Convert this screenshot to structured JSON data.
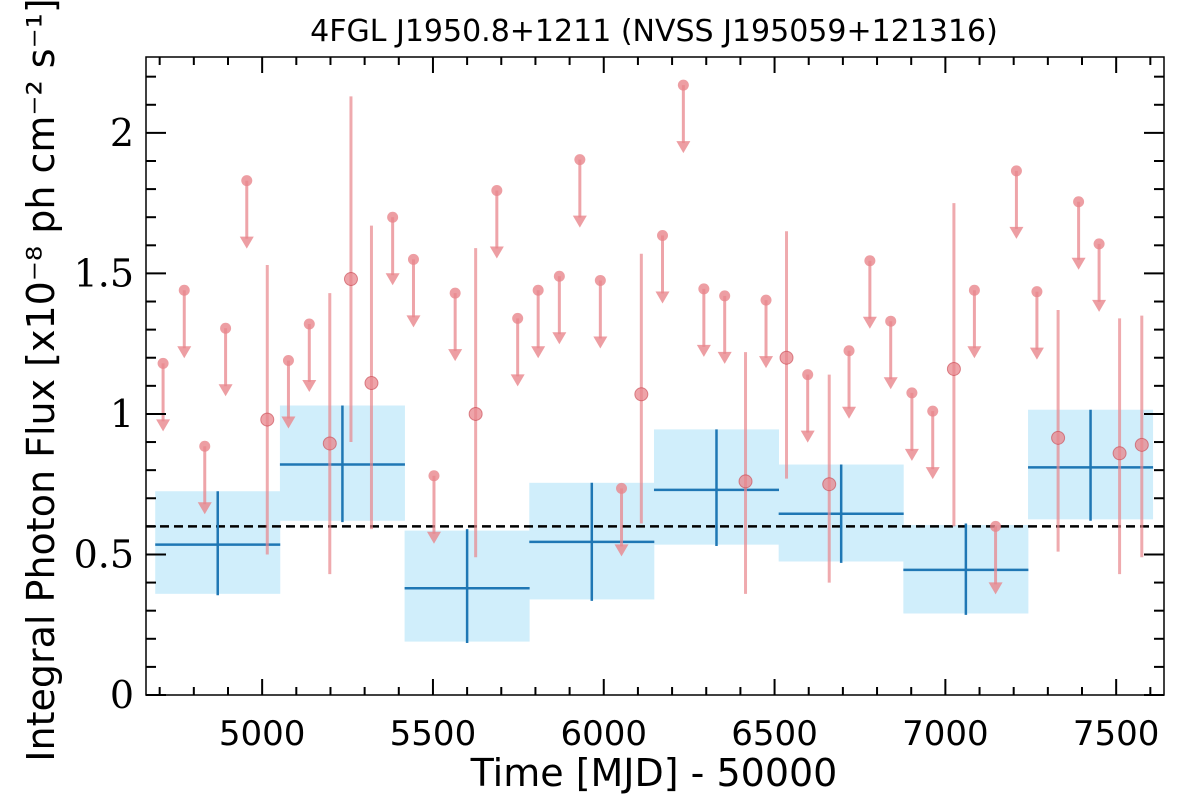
{
  "chart_data": {
    "type": "scatter",
    "title": "4FGL J1950.8+1211 (NVSS J195059+121316)",
    "xlabel": "Time [MJD] - 50000",
    "ylabel": "Integral Photon Flux [x10⁻⁸ ph cm⁻² s⁻¹]",
    "xlim": [
      4660,
      7640
    ],
    "ylim": [
      0,
      2.27
    ],
    "xticks": [
      5000,
      5500,
      6000,
      6500,
      7000,
      7500
    ],
    "yticks": [
      0,
      0.5,
      1,
      1.5,
      2
    ],
    "ytick_labels": [
      "0",
      "0.5",
      "1",
      "1.5",
      "2"
    ],
    "grid": false,
    "reference_line": {
      "y": 0.6,
      "style": "dashed",
      "color": "#000000"
    },
    "colors": {
      "binned": "#1f77b4",
      "binned_fill": "#d0eefb",
      "short": "#e8868c"
    },
    "series": [
      {
        "kind": "binned",
        "bins": [
          {
            "x": 4870,
            "half_width": 183,
            "y": 0.535,
            "yerr": [
              0.355,
              0.725
            ],
            "band": [
              0.36,
              0.725
            ]
          },
          {
            "x": 5235,
            "half_width": 183,
            "y": 0.82,
            "yerr": [
              0.615,
              1.03
            ],
            "band": [
              0.62,
              1.03
            ]
          },
          {
            "x": 5600,
            "half_width": 183,
            "y": 0.38,
            "yerr": [
              0.185,
              0.59
            ],
            "band": [
              0.19,
              0.585
            ]
          },
          {
            "x": 5965,
            "half_width": 183,
            "y": 0.545,
            "yerr": [
              0.335,
              0.755
            ],
            "band": [
              0.34,
              0.755
            ]
          },
          {
            "x": 6330,
            "half_width": 183,
            "y": 0.73,
            "yerr": [
              0.53,
              0.945
            ],
            "band": [
              0.535,
              0.945
            ]
          },
          {
            "x": 6695,
            "half_width": 183,
            "y": 0.645,
            "yerr": [
              0.47,
              0.82
            ],
            "band": [
              0.475,
              0.82
            ]
          },
          {
            "x": 7060,
            "half_width": 183,
            "y": 0.445,
            "yerr": [
              0.285,
              0.61
            ],
            "band": [
              0.29,
              0.605
            ]
          },
          {
            "x": 7425,
            "half_width": 183,
            "y": 0.81,
            "yerr": [
              0.62,
              1.015
            ],
            "band": [
              0.625,
              1.015
            ]
          }
        ]
      },
      {
        "kind": "detections",
        "points": [
          {
            "x": 5015,
            "y": 0.98,
            "yerr": [
              0.5,
              1.53
            ]
          },
          {
            "x": 5198,
            "y": 0.895,
            "yerr": [
              0.43,
              1.43
            ]
          },
          {
            "x": 5260,
            "y": 1.48,
            "yerr": [
              0.9,
              2.13
            ]
          },
          {
            "x": 5320,
            "y": 1.11,
            "yerr": [
              0.59,
              1.67
            ]
          },
          {
            "x": 5625,
            "y": 1.0,
            "yerr": [
              0.49,
              1.59
            ]
          },
          {
            "x": 6110,
            "y": 1.07,
            "yerr": [
              0.61,
              1.57
            ]
          },
          {
            "x": 6415,
            "y": 0.76,
            "yerr": [
              0.36,
              1.22
            ]
          },
          {
            "x": 6535,
            "y": 1.2,
            "yerr": [
              0.77,
              1.65
            ]
          },
          {
            "x": 6660,
            "y": 0.75,
            "yerr": [
              0.4,
              1.14
            ]
          },
          {
            "x": 7025,
            "y": 1.16,
            "yerr": [
              0.6,
              1.75
            ]
          },
          {
            "x": 7330,
            "y": 0.915,
            "yerr": [
              0.51,
              1.37
            ]
          },
          {
            "x": 7510,
            "y": 0.86,
            "yerr": [
              0.43,
              1.34
            ]
          },
          {
            "x": 7575,
            "y": 0.89,
            "yerr": [
              0.49,
              1.35
            ]
          }
        ]
      },
      {
        "kind": "upper_limits",
        "points": [
          {
            "x": 4710,
            "y": 1.18
          },
          {
            "x": 4772,
            "y": 1.44
          },
          {
            "x": 4832,
            "y": 0.885
          },
          {
            "x": 4893,
            "y": 1.305
          },
          {
            "x": 4955,
            "y": 1.83
          },
          {
            "x": 5077,
            "y": 1.19
          },
          {
            "x": 5138,
            "y": 1.32
          },
          {
            "x": 5382,
            "y": 1.7
          },
          {
            "x": 5443,
            "y": 1.55
          },
          {
            "x": 5503,
            "y": 0.78
          },
          {
            "x": 5565,
            "y": 1.43
          },
          {
            "x": 5687,
            "y": 1.795
          },
          {
            "x": 5748,
            "y": 1.34
          },
          {
            "x": 5808,
            "y": 1.44
          },
          {
            "x": 5870,
            "y": 1.49
          },
          {
            "x": 5930,
            "y": 1.905
          },
          {
            "x": 5990,
            "y": 1.475
          },
          {
            "x": 6052,
            "y": 0.735
          },
          {
            "x": 6172,
            "y": 1.635
          },
          {
            "x": 6233,
            "y": 2.17
          },
          {
            "x": 6293,
            "y": 1.445
          },
          {
            "x": 6354,
            "y": 1.42
          },
          {
            "x": 6475,
            "y": 1.405
          },
          {
            "x": 6597,
            "y": 1.14
          },
          {
            "x": 6718,
            "y": 1.225
          },
          {
            "x": 6779,
            "y": 1.545
          },
          {
            "x": 6840,
            "y": 1.33
          },
          {
            "x": 6902,
            "y": 1.075
          },
          {
            "x": 6963,
            "y": 1.01
          },
          {
            "x": 7085,
            "y": 1.44
          },
          {
            "x": 7147,
            "y": 0.6
          },
          {
            "x": 7208,
            "y": 1.865
          },
          {
            "x": 7268,
            "y": 1.435
          },
          {
            "x": 7390,
            "y": 1.755
          },
          {
            "x": 7450,
            "y": 1.605
          }
        ]
      }
    ]
  }
}
